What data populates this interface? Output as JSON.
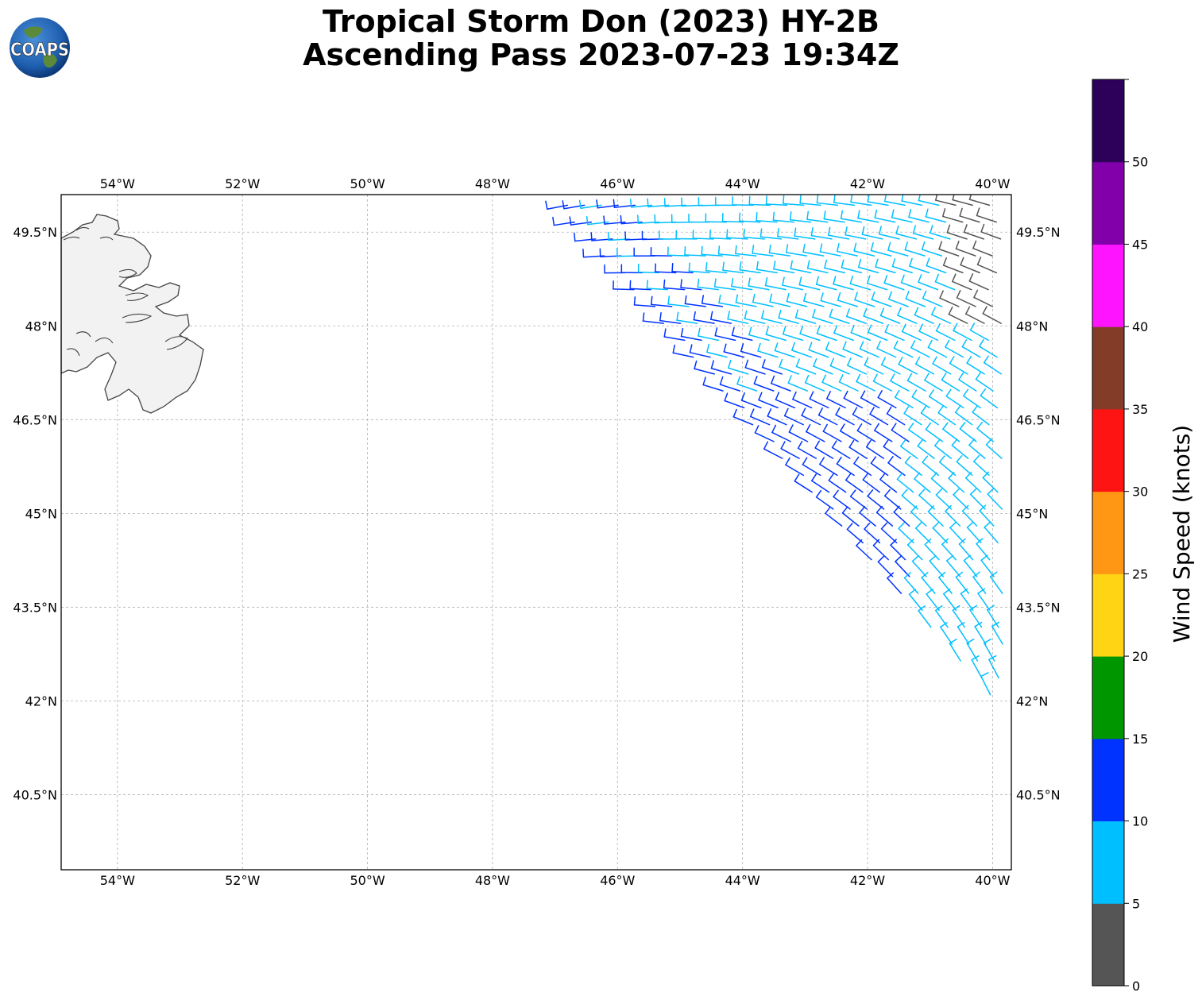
{
  "title": {
    "line1": "Tropical Storm Don (2023) HY-2B",
    "line2": "Ascending Pass 2023-07-23 19:34Z"
  },
  "logo": {
    "text": "COAPS"
  },
  "map": {
    "lon_labels": [
      "54°W",
      "52°W",
      "50°W",
      "48°W",
      "46°W",
      "44°W",
      "42°W",
      "40°W"
    ],
    "lat_labels": [
      "49.5°N",
      "48°N",
      "46.5°N",
      "45°N",
      "43.5°N",
      "42°N",
      "40.5°N"
    ],
    "lon_values": [
      -54,
      -52,
      -50,
      -48,
      -46,
      -44,
      -42,
      -40
    ],
    "lat_values": [
      49.5,
      48,
      46.5,
      45,
      43.5,
      42,
      40.5
    ],
    "extent": {
      "lon_min": -54.9,
      "lon_max": -39.7,
      "lat_min": 39.3,
      "lat_max": 50.1
    }
  },
  "colorbar": {
    "label": "Wind Speed (knots)",
    "ticks": [
      "0",
      "5",
      "10",
      "15",
      "20",
      "25",
      "30",
      "35",
      "40",
      "45",
      "50"
    ],
    "bins": [
      {
        "range": "0-5",
        "color": "#555555"
      },
      {
        "range": "5-10",
        "color": "#00bfff"
      },
      {
        "range": "10-15",
        "color": "#0033ff"
      },
      {
        "range": "15-20",
        "color": "#009600"
      },
      {
        "range": "20-25",
        "color": "#ffd414"
      },
      {
        "range": "25-30",
        "color": "#ff9614"
      },
      {
        "range": "30-35",
        "color": "#ff1414"
      },
      {
        "range": "35-40",
        "color": "#823c28"
      },
      {
        "range": "40-45",
        "color": "#ff14ff"
      },
      {
        "range": "45-50",
        "color": "#8200aa"
      },
      {
        "range": "50+",
        "color": "#2d005a"
      }
    ]
  },
  "colors": {
    "light_blue": "#00bfff",
    "blue": "#0033ff",
    "green": "#009600",
    "gray": "#555555",
    "land": "#f2f2f2",
    "coast": "#444444",
    "grid": "#b0b0b0"
  }
}
